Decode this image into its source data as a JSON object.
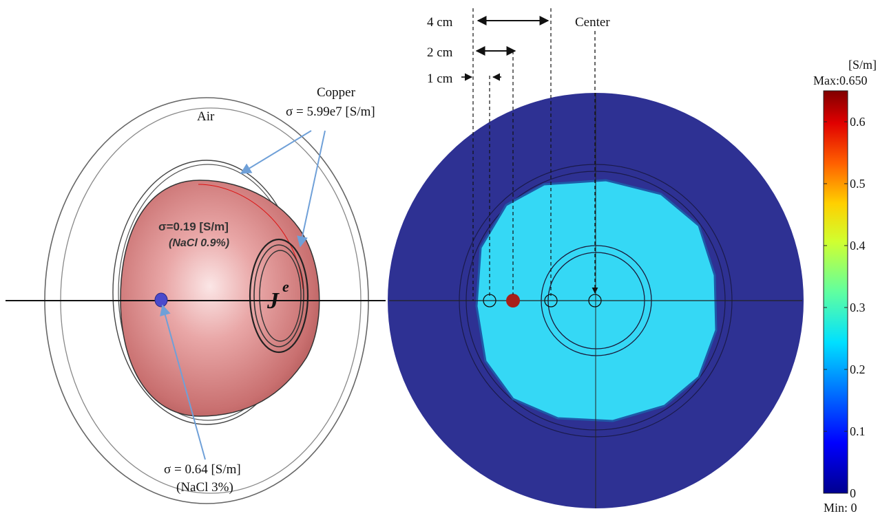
{
  "left_panel": {
    "air_label": "Air",
    "copper_label": "Copper",
    "copper_sigma": "σ = 5.99e7 [S/m]",
    "saline_sigma": "σ=0.19 [S/m]",
    "saline_note": "(NaCl 0.9%)",
    "source_symbol": "J",
    "source_superscript": "e",
    "inclusion_sigma": "σ = 0.64 [S/m]",
    "inclusion_note": "(NaCl 3%)"
  },
  "right_panel": {
    "dist_4cm": "4 cm",
    "dist_2cm": "2 cm",
    "dist_1cm": "1 cm",
    "center_label": "Center"
  },
  "colorbar": {
    "unit": "[S/m]",
    "max_label": "Max:0.650",
    "min_label": "Min: 0",
    "ticks": [
      "0.6",
      "0.5",
      "0.4",
      "0.3",
      "0.2",
      "0.1",
      "0"
    ],
    "tick_values": [
      0.6,
      0.5,
      0.4,
      0.3,
      0.2,
      0.1,
      0
    ],
    "max_value": 0.65,
    "colormap": [
      "#00008f",
      "#0000ff",
      "#0080ff",
      "#00ffff",
      "#80ff80",
      "#ffff00",
      "#ff8000",
      "#ff0000",
      "#800000"
    ]
  },
  "colors": {
    "outer_disc": "#2e3193",
    "inner_region": "#35d8f5",
    "inclusion": "#a8201a",
    "phantom_pink": "#d98585",
    "pointer_blue": "#6fa0d8"
  }
}
